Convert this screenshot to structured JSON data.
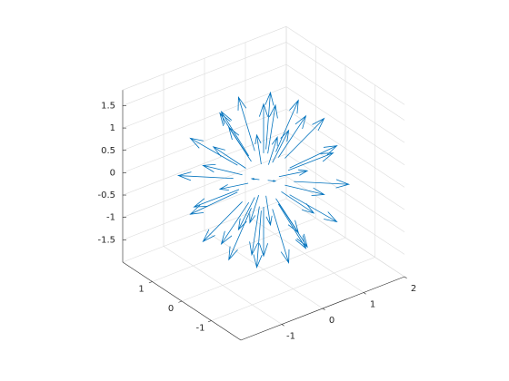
{
  "chart_data": {
    "type": "quiver3",
    "x": [
      0.6,
      0.43,
      0,
      -0.43,
      -0.6,
      -0.43,
      0,
      0.43,
      0.52,
      0.37,
      0,
      -0.37,
      -0.52,
      -0.37,
      0,
      0.37,
      0.52,
      0.37,
      0,
      -0.37,
      -0.52,
      -0.37,
      0,
      0.37,
      0.3,
      0.21,
      0,
      -0.21,
      -0.3,
      -0.21,
      0,
      0.21,
      0.3,
      0.21,
      0,
      -0.21,
      -0.3,
      -0.21,
      0,
      0.21,
      0,
      0
    ],
    "y": [
      0,
      0.43,
      0.6,
      0.43,
      0,
      -0.43,
      -0.6,
      -0.43,
      0,
      0.37,
      0.52,
      0.37,
      0,
      -0.37,
      -0.52,
      -0.37,
      0,
      0.37,
      0.52,
      0.37,
      0,
      -0.37,
      -0.52,
      -0.37,
      0,
      0.21,
      0.3,
      0.21,
      0,
      -0.21,
      -0.3,
      -0.21,
      0,
      0.21,
      0.3,
      0.21,
      0,
      -0.21,
      -0.3,
      -0.21,
      0,
      0
    ],
    "z": [
      0,
      0,
      0,
      0,
      0,
      0,
      0,
      0,
      0.3,
      0.3,
      0.3,
      0.3,
      0.3,
      0.3,
      0.3,
      0.3,
      -0.3,
      -0.3,
      -0.3,
      -0.3,
      -0.3,
      -0.3,
      -0.3,
      -0.3,
      0.52,
      0.52,
      0.52,
      0.52,
      0.52,
      0.52,
      0.52,
      0.52,
      -0.52,
      -0.52,
      -0.52,
      -0.52,
      -0.52,
      -0.52,
      -0.52,
      -0.52,
      0.6,
      -0.6
    ],
    "u": [
      1.1,
      0.78,
      0,
      -0.78,
      -1.1,
      -0.78,
      0,
      0.78,
      0.96,
      0.67,
      0,
      -0.67,
      -0.96,
      -0.67,
      0,
      0.67,
      0.96,
      0.67,
      0,
      -0.67,
      -0.96,
      -0.67,
      0,
      0.67,
      0.55,
      0.39,
      0,
      -0.39,
      -0.55,
      -0.39,
      0,
      0.39,
      0.55,
      0.39,
      0,
      -0.39,
      -0.55,
      -0.39,
      0,
      0.39,
      0,
      0
    ],
    "v": [
      0,
      0.78,
      1.1,
      0.78,
      0,
      -0.78,
      -1.1,
      -0.78,
      0,
      0.67,
      0.96,
      0.67,
      0,
      -0.67,
      -0.96,
      -0.67,
      0,
      0.67,
      0.96,
      0.67,
      0,
      -0.67,
      -0.96,
      -0.67,
      0,
      0.39,
      0.55,
      0.39,
      0,
      -0.39,
      -0.55,
      -0.39,
      0,
      0.39,
      0.55,
      0.39,
      0,
      -0.39,
      -0.55,
      -0.39,
      0,
      0
    ],
    "w": [
      0,
      0,
      0,
      0,
      0,
      0,
      0,
      0,
      0.55,
      0.55,
      0.55,
      0.55,
      0.55,
      0.55,
      0.55,
      0.55,
      -0.55,
      -0.55,
      -0.55,
      -0.55,
      -0.55,
      -0.55,
      -0.55,
      -0.55,
      0.96,
      0.96,
      0.96,
      0.96,
      0.96,
      0.96,
      0.96,
      0.96,
      -0.96,
      -0.96,
      -0.96,
      -0.96,
      -0.96,
      -0.96,
      -0.96,
      -0.96,
      1.1,
      -1.1
    ],
    "color": "#0072bd",
    "xlim": [
      -2,
      2
    ],
    "ylim": [
      -2,
      2
    ],
    "zlim": [
      -2,
      1.85
    ],
    "xticks": [
      -1,
      0,
      1,
      2
    ],
    "yticks": [
      -1,
      0,
      1
    ],
    "zticks": [
      -1.5,
      -1,
      -0.5,
      0,
      0.5,
      1,
      1.5
    ],
    "grid": true
  }
}
